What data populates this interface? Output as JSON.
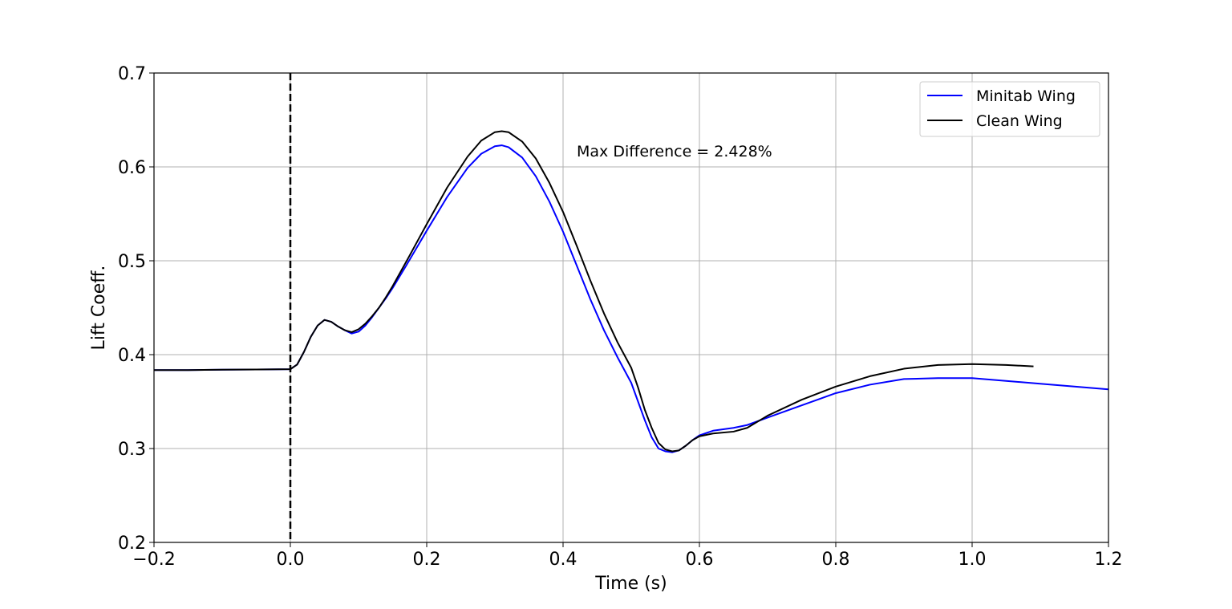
{
  "chart_data": {
    "type": "line",
    "xlabel": "Time (s)",
    "ylabel": "Lift Coeff.",
    "xlim": [
      -0.2,
      1.2
    ],
    "ylim": [
      0.2,
      0.7
    ],
    "xticks": [
      "-0.2",
      "0.0",
      "0.2",
      "0.4",
      "0.6",
      "0.8",
      "1.0",
      "1.2"
    ],
    "yticks": [
      "0.2",
      "0.3",
      "0.4",
      "0.5",
      "0.6",
      "0.7"
    ],
    "xtick_values": [
      -0.2,
      0.0,
      0.2,
      0.4,
      0.6,
      0.8,
      1.0,
      1.2
    ],
    "ytick_values": [
      0.2,
      0.3,
      0.4,
      0.5,
      0.6,
      0.7
    ],
    "grid": true,
    "legend_position": "top-right",
    "vline": {
      "x": 0.0,
      "style": "dashed",
      "color": "#000000"
    },
    "annotation": {
      "text": "Max Difference = 2.428%",
      "x": 0.42,
      "y": 0.617
    },
    "series": [
      {
        "name": "Minitab Wing",
        "color": "#0000ff",
        "x": [
          -0.2,
          -0.15,
          -0.1,
          -0.05,
          0.0,
          0.01,
          0.02,
          0.03,
          0.04,
          0.05,
          0.06,
          0.07,
          0.08,
          0.09,
          0.1,
          0.11,
          0.12,
          0.13,
          0.14,
          0.15,
          0.17,
          0.2,
          0.23,
          0.26,
          0.28,
          0.3,
          0.31,
          0.32,
          0.34,
          0.36,
          0.38,
          0.4,
          0.42,
          0.44,
          0.46,
          0.48,
          0.5,
          0.51,
          0.52,
          0.53,
          0.54,
          0.55,
          0.56,
          0.57,
          0.58,
          0.59,
          0.6,
          0.62,
          0.65,
          0.67,
          0.7,
          0.75,
          0.8,
          0.85,
          0.9,
          0.95,
          1.0,
          1.05,
          1.1,
          1.15,
          1.2
        ],
        "y": [
          0.3835,
          0.3835,
          0.384,
          0.3842,
          0.3845,
          0.3895,
          0.403,
          0.419,
          0.431,
          0.437,
          0.435,
          0.43,
          0.426,
          0.4225,
          0.4245,
          0.431,
          0.44,
          0.45,
          0.46,
          0.471,
          0.495,
          0.532,
          0.568,
          0.599,
          0.614,
          0.622,
          0.623,
          0.621,
          0.61,
          0.59,
          0.563,
          0.531,
          0.495,
          0.459,
          0.426,
          0.397,
          0.37,
          0.35,
          0.33,
          0.312,
          0.3,
          0.297,
          0.296,
          0.298,
          0.303,
          0.309,
          0.314,
          0.319,
          0.322,
          0.325,
          0.333,
          0.346,
          0.359,
          0.368,
          0.374,
          0.375,
          0.375,
          0.372,
          0.369,
          0.366,
          0.363
        ]
      },
      {
        "name": "Clean Wing",
        "color": "#000000",
        "x": [
          -0.2,
          -0.15,
          -0.1,
          -0.05,
          0.0,
          0.01,
          0.02,
          0.03,
          0.04,
          0.05,
          0.06,
          0.07,
          0.08,
          0.09,
          0.1,
          0.11,
          0.12,
          0.13,
          0.14,
          0.15,
          0.17,
          0.2,
          0.23,
          0.26,
          0.28,
          0.3,
          0.31,
          0.32,
          0.34,
          0.36,
          0.38,
          0.4,
          0.42,
          0.44,
          0.46,
          0.48,
          0.5,
          0.51,
          0.52,
          0.53,
          0.54,
          0.55,
          0.56,
          0.57,
          0.58,
          0.59,
          0.6,
          0.62,
          0.65,
          0.67,
          0.7,
          0.75,
          0.8,
          0.85,
          0.9,
          0.95,
          1.0,
          1.05,
          1.09
        ],
        "y": [
          0.3835,
          0.3835,
          0.384,
          0.3842,
          0.3845,
          0.3895,
          0.403,
          0.419,
          0.431,
          0.437,
          0.435,
          0.43,
          0.426,
          0.424,
          0.427,
          0.433,
          0.441,
          0.45,
          0.461,
          0.473,
          0.499,
          0.539,
          0.578,
          0.611,
          0.628,
          0.637,
          0.638,
          0.637,
          0.627,
          0.609,
          0.583,
          0.552,
          0.516,
          0.479,
          0.444,
          0.413,
          0.386,
          0.365,
          0.341,
          0.322,
          0.306,
          0.299,
          0.297,
          0.298,
          0.303,
          0.309,
          0.313,
          0.316,
          0.318,
          0.322,
          0.335,
          0.352,
          0.366,
          0.377,
          0.385,
          0.389,
          0.39,
          0.389,
          0.3875
        ]
      }
    ]
  }
}
